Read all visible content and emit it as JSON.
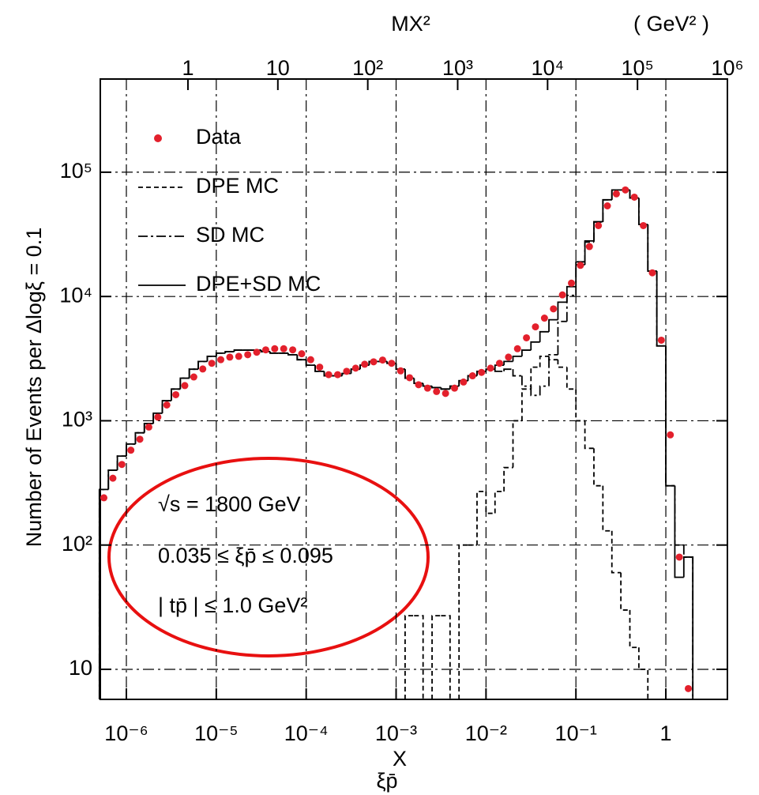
{
  "chart_data": {
    "type": "histogram",
    "xlabel": "ξp̄",
    "ylabel": "Number of Events per Δlogξ = 0.1",
    "top_axis_label": "MX²",
    "top_axis_unit": "( GeV² )",
    "annotations": [
      "√s  = 1800 GeV",
      "0.035 ≤ ξp̄ ≤ 0.095",
      "| tp̄ | ≤ 1.0 GeV²",
      "X"
    ],
    "xscale": "log",
    "yscale": "log",
    "grid": true,
    "legend": "upper left",
    "xlim": [
      5.13e-07,
      4.84
    ],
    "ylim": [
      5.73,
      562000
    ],
    "x2lim": [
      0.106,
      1000000
    ],
    "xticks": [
      {
        "value": 1e-06,
        "label": "10⁻⁶"
      },
      {
        "value": 1e-05,
        "label": "10⁻⁵"
      },
      {
        "value": 0.0001,
        "label": "10⁻⁴"
      },
      {
        "value": 0.001,
        "label": "10⁻³"
      },
      {
        "value": 0.01,
        "label": "10⁻²"
      },
      {
        "value": 0.1,
        "label": "10⁻¹"
      },
      1
    ],
    "x2ticks": [
      1,
      10,
      {
        "value": 100,
        "label": "10²"
      },
      {
        "value": 1000,
        "label": "10³"
      },
      {
        "value": 10000,
        "label": "10⁴"
      },
      {
        "value": 100000,
        "label": "10⁵"
      },
      {
        "value": 1000000,
        "label": "10⁶"
      }
    ],
    "yticks": [
      10,
      {
        "value": 100,
        "label": "10²"
      },
      {
        "value": 1000,
        "label": "10³"
      },
      {
        "value": 10000,
        "label": "10⁴"
      },
      {
        "value": 100000,
        "label": "10⁵"
      }
    ],
    "x": [
      5.623e-07,
      7.079e-07,
      8.913e-07,
      1.122e-06,
      1.413e-06,
      1.778e-06,
      2.239e-06,
      2.818e-06,
      3.548e-06,
      4.467e-06,
      5.623e-06,
      7.079e-06,
      8.913e-06,
      1.122e-05,
      1.413e-05,
      1.778e-05,
      2.239e-05,
      2.818e-05,
      3.548e-05,
      4.467e-05,
      5.623e-05,
      7.079e-05,
      8.913e-05,
      0.0001122,
      0.0001413,
      0.0001778,
      0.0002239,
      0.0002818,
      0.0003548,
      0.0004467,
      0.0005623,
      0.0007079,
      0.0008913,
      0.001122,
      0.001413,
      0.001778,
      0.002239,
      0.002818,
      0.003548,
      0.004467,
      0.005623,
      0.007079,
      0.008913,
      0.01122,
      0.01413,
      0.01778,
      0.02239,
      0.02818,
      0.03548,
      0.04467,
      0.05623,
      0.07079,
      0.08913,
      0.1122,
      0.1413,
      0.1778,
      0.2239,
      0.2818,
      0.3548,
      0.4467,
      0.5623,
      0.7079,
      0.8913,
      1.122,
      1.413,
      1.778
    ],
    "series": [
      {
        "name": "Data",
        "kind": "points",
        "color": "#e3202c",
        "values": [
          240,
          345,
          445,
          580,
          710,
          890,
          1070,
          1340,
          1620,
          1920,
          2250,
          2610,
          2900,
          3100,
          3250,
          3300,
          3400,
          3560,
          3720,
          3800,
          3800,
          3720,
          3460,
          3100,
          2700,
          2350,
          2350,
          2500,
          2650,
          2850,
          2980,
          3080,
          2900,
          2520,
          2220,
          1950,
          1830,
          1720,
          1660,
          1830,
          2050,
          2300,
          2450,
          2650,
          2900,
          3250,
          3800,
          4650,
          5700,
          6700,
          7950,
          10300,
          12800,
          17800,
          25200,
          37200,
          53600,
          67000,
          72000,
          63000,
          37200,
          15500,
          4450,
          770,
          80,
          7
        ]
      },
      {
        "name": "DPE MC",
        "kind": "step",
        "dash": "dashed",
        "color": "#000000",
        "values": [
          null,
          null,
          null,
          null,
          null,
          null,
          null,
          null,
          null,
          null,
          null,
          null,
          null,
          null,
          null,
          null,
          null,
          null,
          null,
          null,
          null,
          null,
          null,
          null,
          null,
          null,
          null,
          null,
          null,
          null,
          null,
          null,
          null,
          null,
          27,
          27,
          null,
          27,
          27,
          null,
          100,
          100,
          270,
          180,
          270,
          420,
          1000,
          1800,
          2700,
          3300,
          3100,
          2700,
          1800,
          1000,
          600,
          300,
          130,
          60,
          30,
          15,
          10,
          null,
          null,
          null,
          null,
          null
        ]
      },
      {
        "name": "SD MC",
        "kind": "step",
        "dash": "dashdot",
        "color": "#000000",
        "values": [
          280,
          400,
          520,
          650,
          800,
          950,
          1150,
          1450,
          1800,
          2200,
          2600,
          3000,
          3300,
          3500,
          3600,
          3700,
          3700,
          3700,
          3600,
          3500,
          3500,
          3400,
          3100,
          2800,
          2500,
          2300,
          2300,
          2400,
          2600,
          2800,
          3000,
          3000,
          2900,
          2600,
          2200,
          2000,
          1900,
          1850,
          1800,
          1900,
          2100,
          2300,
          2500,
          2600,
          2500,
          2600,
          2300,
          1900,
          1600,
          1900,
          3400,
          6300,
          10200,
          18000,
          27400,
          39700,
          59900,
          72000,
          72000,
          62000,
          38000,
          16000,
          4000,
          300,
          100,
          80
        ]
      },
      {
        "name": "DPE+SD MC",
        "kind": "step",
        "dash": "solid",
        "color": "#000000",
        "values": [
          280,
          400,
          520,
          650,
          800,
          950,
          1150,
          1450,
          1800,
          2200,
          2600,
          3000,
          3300,
          3500,
          3600,
          3700,
          3700,
          3700,
          3600,
          3500,
          3500,
          3400,
          3100,
          2800,
          2500,
          2300,
          2300,
          2400,
          2600,
          2800,
          3000,
          3000,
          2900,
          2600,
          2200,
          2000,
          1900,
          1850,
          1800,
          1900,
          2100,
          2300,
          2500,
          2600,
          2800,
          3000,
          3300,
          3700,
          4300,
          5200,
          6500,
          9000,
          12000,
          19000,
          28000,
          40000,
          60000,
          72000,
          72000,
          62000,
          38000,
          16000,
          4000,
          300,
          55,
          80
        ]
      }
    ]
  }
}
